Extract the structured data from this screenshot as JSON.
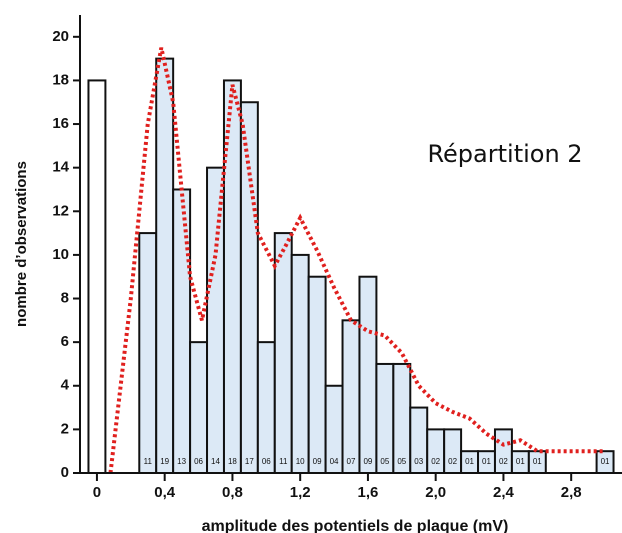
{
  "chart_data": {
    "type": "histogram",
    "annotation": "Répartition 2",
    "xlabel": "amplitude des potentiels de plaque (mV)",
    "ylabel": "nombre d’observations",
    "bins": [
      -0.05,
      0.05,
      0.15,
      0.25,
      0.35,
      0.45,
      0.55,
      0.65,
      0.75,
      0.85,
      0.95,
      1.05,
      1.15,
      1.25,
      1.35,
      1.45,
      1.55,
      1.65,
      1.75,
      1.85,
      1.95,
      2.05,
      2.15,
      2.25,
      2.35,
      2.45,
      2.55,
      2.65,
      2.75,
      2.85,
      2.95,
      3.05
    ],
    "values": [
      18,
      0,
      0,
      11,
      19,
      13,
      6,
      14,
      18,
      17,
      6,
      11,
      10,
      9,
      4,
      7,
      9,
      5,
      5,
      3,
      2,
      2,
      1,
      1,
      2,
      1,
      1,
      0,
      0,
      0,
      1
    ],
    "value_labels": [
      null,
      null,
      null,
      "11",
      "19",
      "13",
      "06",
      "14",
      "18",
      "17",
      "06",
      "11",
      "10",
      "09",
      "04",
      "07",
      "09",
      "05",
      "05",
      "03",
      "02",
      "02",
      "01",
      "01",
      "02",
      "01",
      "01",
      null,
      null,
      null,
      "01"
    ],
    "color": "#dce9f6",
    "first_bar_color": "#ffffff",
    "curve": {
      "color": "#e0201e",
      "line_style": "dotted",
      "x": [
        0.08,
        0.2,
        0.3,
        0.38,
        0.45,
        0.55,
        0.62,
        0.7,
        0.8,
        0.86,
        0.95,
        1.05,
        1.12,
        1.2,
        1.3,
        1.4,
        1.5,
        1.6,
        1.7,
        1.8,
        1.9,
        2.0,
        2.1,
        2.2,
        2.3,
        2.4,
        2.5,
        2.6,
        2.8,
        3.0
      ],
      "values": [
        0,
        8,
        16,
        19.5,
        17,
        9,
        7,
        10,
        17.8,
        16,
        11,
        9.5,
        10.5,
        11.7,
        10.2,
        8.5,
        7,
        6.5,
        6.3,
        5.5,
        4,
        3.2,
        2.8,
        2.5,
        1.8,
        1.3,
        1.5,
        1.0,
        1.0,
        1.0
      ]
    },
    "xlim": [
      -0.1,
      3.1
    ],
    "ylim": [
      0,
      21
    ],
    "xticks": [
      0,
      {
        "value": 0.4,
        "label": "0,4"
      },
      {
        "value": 0.8,
        "label": "0,8"
      },
      {
        "value": 1.2,
        "label": "1,2"
      },
      {
        "value": 1.6,
        "label": "1,6"
      },
      {
        "value": 2.0,
        "label": "2,0"
      },
      {
        "value": 2.4,
        "label": "2,4"
      },
      {
        "value": 2.8,
        "label": "2,8"
      }
    ],
    "yticks": [
      0,
      2,
      4,
      6,
      8,
      10,
      12,
      14,
      16,
      18,
      20
    ]
  }
}
